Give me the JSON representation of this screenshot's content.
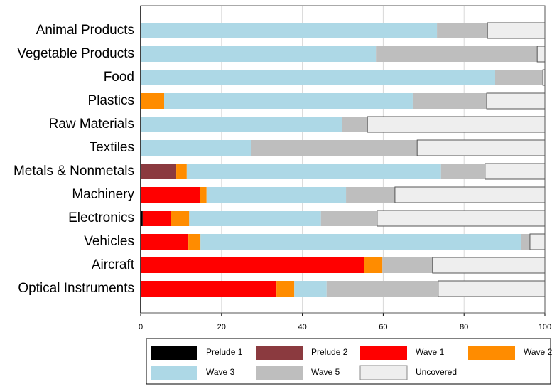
{
  "chart_data": {
    "type": "stacked-bar-horizontal",
    "categories": [
      "Animal Products",
      "Vegetable Products",
      "Food",
      "Plastics",
      "Raw Materials",
      "Textiles",
      "Metals & Nonmetals",
      "Machinery",
      "Electronics",
      "Vehicles",
      "Aircraft",
      "Optical Instruments"
    ],
    "series": [
      {
        "name": "Prelude 1",
        "color": "#000000",
        "values": [
          0,
          0,
          0,
          0,
          0,
          0,
          0,
          0,
          0.5,
          0,
          0,
          0
        ]
      },
      {
        "name": "Prelude 2",
        "color": "#8b3a3f",
        "values": [
          0,
          0,
          0,
          0,
          0,
          0,
          8.8,
          0,
          0,
          0,
          0,
          0
        ]
      },
      {
        "name": "Wave 1",
        "color": "#ff0000",
        "values": [
          0,
          0,
          0,
          0,
          0,
          0,
          0,
          14.6,
          6.9,
          11.8,
          55.2,
          33.6
        ]
      },
      {
        "name": "Wave 2",
        "color": "#ff8c00",
        "values": [
          0,
          0,
          0,
          5.8,
          0,
          0,
          2.6,
          1.7,
          4.6,
          3,
          4.6,
          4.4
        ]
      },
      {
        "name": "Wave 3",
        "color": "#add8e6",
        "values": [
          73.3,
          58.2,
          87.7,
          61.5,
          49.9,
          27.4,
          62.9,
          34.5,
          32.6,
          79.4,
          0,
          8
        ]
      },
      {
        "name": "Wave 5",
        "color": "#bebebe",
        "values": [
          12.5,
          39.9,
          11.8,
          18.3,
          6.2,
          41,
          10.9,
          12.1,
          13.9,
          2.1,
          12.4,
          27.6
        ]
      },
      {
        "name": "Uncovered",
        "color": "#eeeeee",
        "values": [
          14.2,
          1.9,
          0.5,
          14.4,
          43.9,
          31.6,
          14.8,
          37.1,
          41.5,
          3.7,
          27.8,
          26.4
        ]
      }
    ],
    "xlim": [
      0,
      100
    ],
    "xticks": [
      0,
      20,
      40,
      60,
      80,
      100
    ],
    "grid": true
  }
}
